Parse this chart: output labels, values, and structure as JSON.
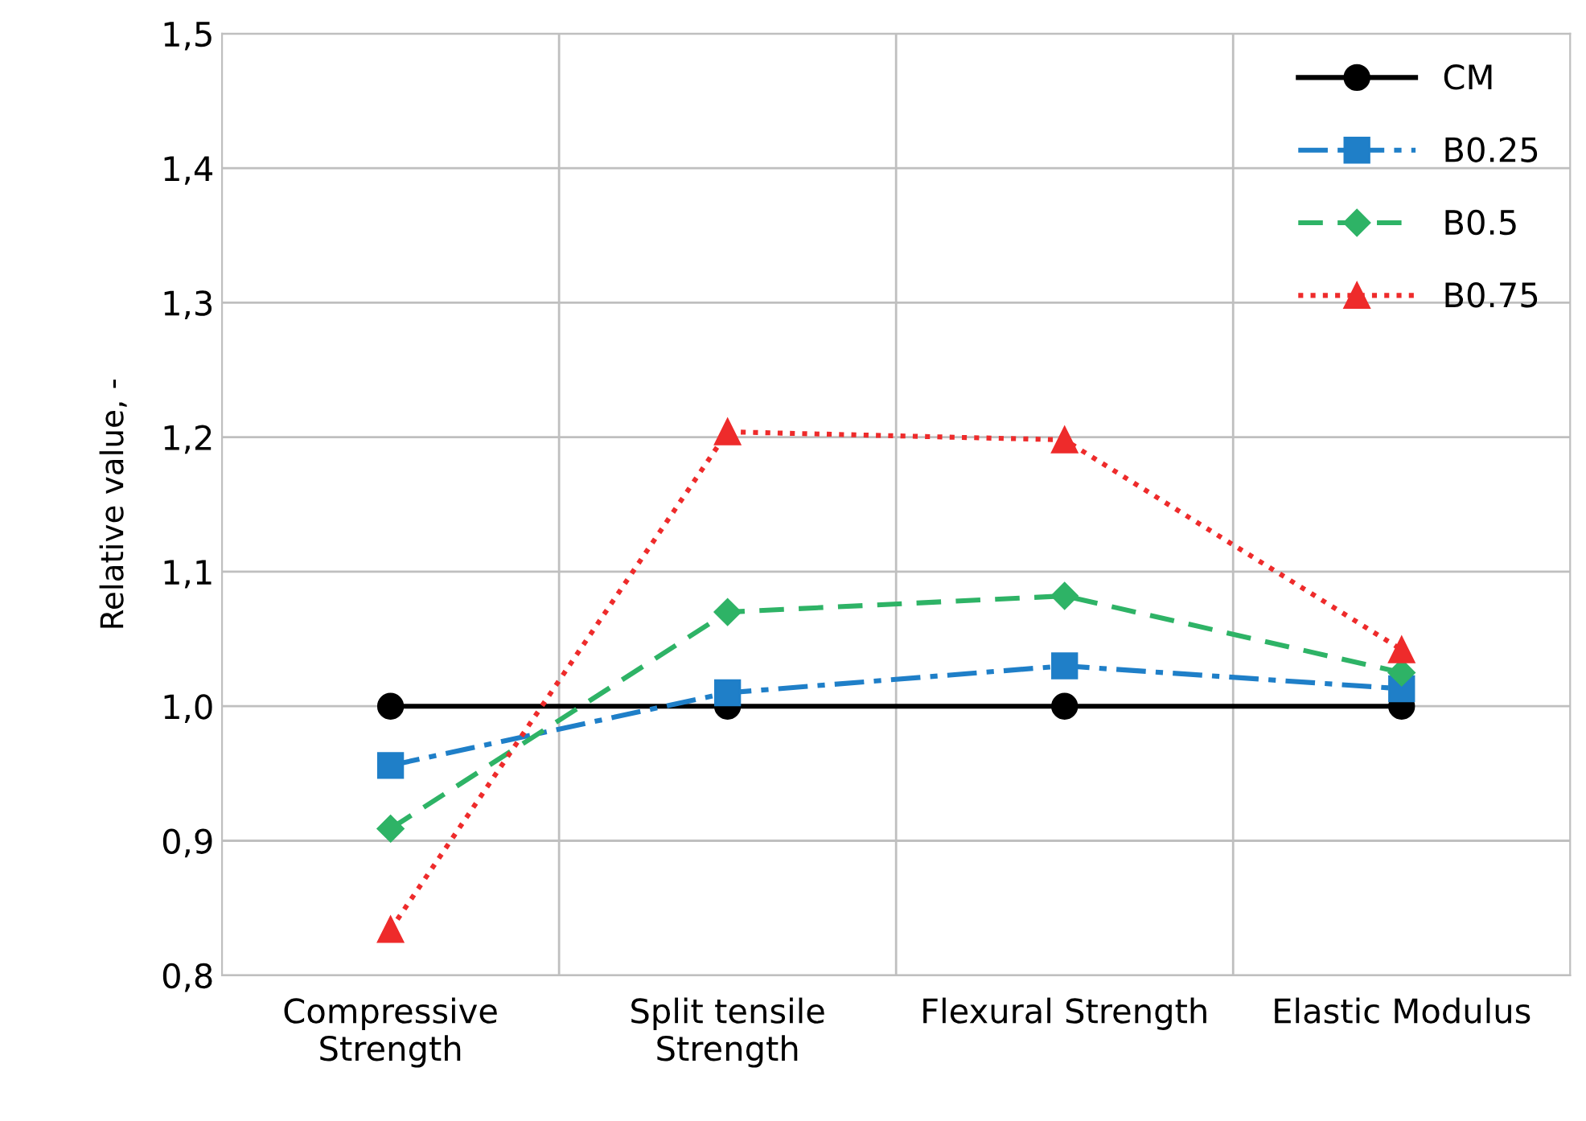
{
  "chart_data": {
    "type": "line",
    "ylabel": "Relative value, -",
    "categories": [
      "Compressive\nStrength",
      "Split tensile\nStrength",
      "Flexural Strength",
      "Elastic Modulus"
    ],
    "series": [
      {
        "name": "CM",
        "color": "#000000",
        "marker": "circle",
        "line_style": "solid",
        "values": [
          1.0,
          1.0,
          1.0,
          1.0
        ]
      },
      {
        "name": "B0.25",
        "color": "#1f7fc8",
        "marker": "square",
        "line_style": "dashdot",
        "values": [
          0.956,
          1.01,
          1.03,
          1.013
        ]
      },
      {
        "name": "B0.5",
        "color": "#2eb366",
        "marker": "diamond",
        "line_style": "dashed",
        "values": [
          0.909,
          1.07,
          1.082,
          1.025
        ]
      },
      {
        "name": "B0.75",
        "color": "#ee2b2b",
        "marker": "triangle",
        "line_style": "dotted",
        "values": [
          0.834,
          1.204,
          1.198,
          1.042
        ]
      }
    ],
    "ylim": [
      0.8,
      1.5
    ],
    "yticks": [
      {
        "value": 0.8,
        "label": "0,8"
      },
      {
        "value": 0.9,
        "label": "0,9"
      },
      {
        "value": 1.0,
        "label": "1,0"
      },
      {
        "value": 1.1,
        "label": "1,1"
      },
      {
        "value": 1.2,
        "label": "1,2"
      },
      {
        "value": 1.3,
        "label": "1,3"
      },
      {
        "value": 1.4,
        "label": "1,4"
      },
      {
        "value": 1.5,
        "label": "1,5"
      }
    ],
    "grid": true,
    "legend": "top right"
  }
}
